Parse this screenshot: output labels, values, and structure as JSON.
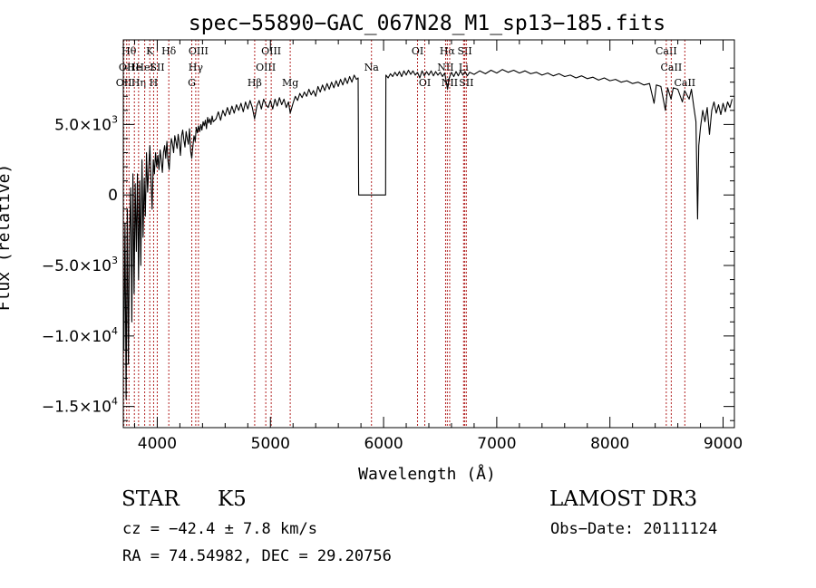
{
  "chart_data": {
    "type": "line",
    "title": "spec−55890−GAC_067N28_M1_sp13−185.fits",
    "xlabel": "Wavelength (Å)",
    "ylabel": "Flux (relative)",
    "xlim": [
      3700,
      9100
    ],
    "ylim": [
      -16500,
      11000
    ],
    "x_ticks": [
      {
        "value": 4000,
        "label": "4000"
      },
      {
        "value": 5000,
        "label": "5000"
      },
      {
        "value": 6000,
        "label": "6000"
      },
      {
        "value": 7000,
        "label": "7000"
      },
      {
        "value": 8000,
        "label": "8000"
      },
      {
        "value": 9000,
        "label": "9000"
      }
    ],
    "y_ticks": [
      {
        "value": 5000,
        "mantissa": "5.0×10",
        "exp": "3"
      },
      {
        "value": 0,
        "mantissa": "0",
        "exp": ""
      },
      {
        "value": -5000,
        "mantissa": "−5.0×10",
        "exp": "3"
      },
      {
        "value": -10000,
        "mantissa": "−1.0×10",
        "exp": "4"
      },
      {
        "value": -15000,
        "mantissa": "−1.5×10",
        "exp": "4"
      }
    ],
    "series": [
      {
        "color": "#000000",
        "points": [
          [
            3705,
            -11000
          ],
          [
            3715,
            -2000
          ],
          [
            3725,
            -14500
          ],
          [
            3735,
            -1000
          ],
          [
            3745,
            -12000
          ],
          [
            3755,
            -3000
          ],
          [
            3765,
            500
          ],
          [
            3775,
            -9000
          ],
          [
            3785,
            1500
          ],
          [
            3795,
            -7000
          ],
          [
            3805,
            800
          ],
          [
            3815,
            -4000
          ],
          [
            3825,
            1500
          ],
          [
            3835,
            -6000
          ],
          [
            3845,
            1000
          ],
          [
            3855,
            -5000
          ],
          [
            3865,
            2500
          ],
          [
            3875,
            -3000
          ],
          [
            3885,
            1200
          ],
          [
            3895,
            -1500
          ],
          [
            3905,
            3000
          ],
          [
            3915,
            200
          ],
          [
            3925,
            2000
          ],
          [
            3935,
            3500
          ],
          [
            3945,
            1000
          ],
          [
            3955,
            -1000
          ],
          [
            3965,
            2500
          ],
          [
            3975,
            1500
          ],
          [
            3985,
            3000
          ],
          [
            3995,
            2000
          ],
          [
            4005,
            2800
          ],
          [
            4015,
            1800
          ],
          [
            4025,
            3200
          ],
          [
            4035,
            2500
          ],
          [
            4045,
            1600
          ],
          [
            4055,
            3000
          ],
          [
            4065,
            3500
          ],
          [
            4075,
            2600
          ],
          [
            4085,
            3800
          ],
          [
            4095,
            2400
          ],
          [
            4105,
            1800
          ],
          [
            4115,
            3200
          ],
          [
            4125,
            4000
          ],
          [
            4135,
            3600
          ],
          [
            4145,
            3000
          ],
          [
            4155,
            4200
          ],
          [
            4165,
            3800
          ],
          [
            4175,
            3300
          ],
          [
            4185,
            4300
          ],
          [
            4195,
            3700
          ],
          [
            4205,
            2800
          ],
          [
            4215,
            4200
          ],
          [
            4225,
            4600
          ],
          [
            4235,
            3900
          ],
          [
            4245,
            3400
          ],
          [
            4255,
            4500
          ],
          [
            4265,
            4000
          ],
          [
            4275,
            3600
          ],
          [
            4285,
            4700
          ],
          [
            4295,
            3100
          ],
          [
            4305,
            2600
          ],
          [
            4315,
            3500
          ],
          [
            4325,
            4200
          ],
          [
            4335,
            3800
          ],
          [
            4345,
            4800
          ],
          [
            4355,
            4400
          ],
          [
            4365,
            4900
          ],
          [
            4375,
            4500
          ],
          [
            4385,
            5000
          ],
          [
            4395,
            4600
          ],
          [
            4405,
            5200
          ],
          [
            4415,
            4900
          ],
          [
            4425,
            5300
          ],
          [
            4435,
            4700
          ],
          [
            4445,
            5500
          ],
          [
            4455,
            5100
          ],
          [
            4465,
            5400
          ],
          [
            4475,
            5000
          ],
          [
            4485,
            5600
          ],
          [
            4495,
            5200
          ],
          [
            4520,
            5400
          ],
          [
            4540,
            5900
          ],
          [
            4560,
            5300
          ],
          [
            4580,
            6000
          ],
          [
            4600,
            5600
          ],
          [
            4620,
            6200
          ],
          [
            4640,
            5700
          ],
          [
            4660,
            6300
          ],
          [
            4680,
            5800
          ],
          [
            4700,
            6400
          ],
          [
            4720,
            6000
          ],
          [
            4740,
            6500
          ],
          [
            4760,
            5900
          ],
          [
            4780,
            6600
          ],
          [
            4800,
            6100
          ],
          [
            4820,
            6700
          ],
          [
            4840,
            6200
          ],
          [
            4860,
            5400
          ],
          [
            4880,
            6300
          ],
          [
            4900,
            6700
          ],
          [
            4920,
            6100
          ],
          [
            4940,
            6800
          ],
          [
            4960,
            6400
          ],
          [
            4980,
            6200
          ],
          [
            5000,
            6700
          ],
          [
            5020,
            6100
          ],
          [
            5040,
            6800
          ],
          [
            5060,
            6300
          ],
          [
            5080,
            6900
          ],
          [
            5100,
            6400
          ],
          [
            5120,
            6800
          ],
          [
            5140,
            6200
          ],
          [
            5160,
            6600
          ],
          [
            5175,
            5800
          ],
          [
            5185,
            6100
          ],
          [
            5200,
            6500
          ],
          [
            5220,
            7000
          ],
          [
            5240,
            6700
          ],
          [
            5260,
            7200
          ],
          [
            5280,
            6900
          ],
          [
            5300,
            7300
          ],
          [
            5320,
            7000
          ],
          [
            5340,
            7500
          ],
          [
            5360,
            7100
          ],
          [
            5380,
            7400
          ],
          [
            5400,
            7000
          ],
          [
            5420,
            7700
          ],
          [
            5440,
            7300
          ],
          [
            5460,
            7800
          ],
          [
            5480,
            7400
          ],
          [
            5500,
            7900
          ],
          [
            5520,
            7500
          ],
          [
            5540,
            8000
          ],
          [
            5560,
            7600
          ],
          [
            5580,
            8100
          ],
          [
            5600,
            7700
          ],
          [
            5620,
            8200
          ],
          [
            5640,
            7800
          ],
          [
            5660,
            8300
          ],
          [
            5680,
            7900
          ],
          [
            5700,
            8400
          ],
          [
            5720,
            8000
          ],
          [
            5740,
            8500
          ],
          [
            5760,
            8200
          ],
          [
            5775,
            8300
          ],
          [
            5780,
            0
          ],
          [
            5800,
            0
          ],
          [
            5850,
            0
          ],
          [
            5900,
            0
          ],
          [
            5950,
            0
          ],
          [
            6000,
            0
          ],
          [
            6018,
            0
          ],
          [
            6020,
            8500
          ],
          [
            6040,
            8300
          ],
          [
            6060,
            8600
          ],
          [
            6080,
            8400
          ],
          [
            6100,
            8700
          ],
          [
            6120,
            8450
          ],
          [
            6140,
            8750
          ],
          [
            6160,
            8400
          ],
          [
            6180,
            8800
          ],
          [
            6200,
            8500
          ],
          [
            6220,
            8850
          ],
          [
            6240,
            8550
          ],
          [
            6260,
            8800
          ],
          [
            6280,
            8500
          ],
          [
            6300,
            8700
          ],
          [
            6320,
            8300
          ],
          [
            6340,
            8800
          ],
          [
            6360,
            8450
          ],
          [
            6380,
            8750
          ],
          [
            6400,
            8500
          ],
          [
            6420,
            8800
          ],
          [
            6440,
            8450
          ],
          [
            6460,
            8750
          ],
          [
            6480,
            8500
          ],
          [
            6500,
            8700
          ],
          [
            6520,
            8400
          ],
          [
            6540,
            8650
          ],
          [
            6555,
            8000
          ],
          [
            6565,
            7500
          ],
          [
            6580,
            8300
          ],
          [
            6600,
            8700
          ],
          [
            6620,
            8400
          ],
          [
            6640,
            8750
          ],
          [
            6660,
            8450
          ],
          [
            6680,
            8800
          ],
          [
            6700,
            8500
          ],
          [
            6720,
            8750
          ],
          [
            6740,
            8450
          ],
          [
            6760,
            8700
          ],
          [
            6800,
            8550
          ],
          [
            6850,
            8800
          ],
          [
            6900,
            8600
          ],
          [
            6950,
            8850
          ],
          [
            7000,
            8650
          ],
          [
            7050,
            8900
          ],
          [
            7100,
            8700
          ],
          [
            7150,
            8850
          ],
          [
            7200,
            8650
          ],
          [
            7250,
            8800
          ],
          [
            7300,
            8600
          ],
          [
            7350,
            8700
          ],
          [
            7400,
            8500
          ],
          [
            7450,
            8650
          ],
          [
            7500,
            8450
          ],
          [
            7550,
            8600
          ],
          [
            7600,
            8400
          ],
          [
            7650,
            8500
          ],
          [
            7700,
            8300
          ],
          [
            7750,
            8450
          ],
          [
            7800,
            8250
          ],
          [
            7850,
            8350
          ],
          [
            7900,
            8150
          ],
          [
            7950,
            8300
          ],
          [
            8000,
            8100
          ],
          [
            8050,
            8200
          ],
          [
            8100,
            8000
          ],
          [
            8150,
            8100
          ],
          [
            8200,
            7900
          ],
          [
            8250,
            8000
          ],
          [
            8300,
            7800
          ],
          [
            8350,
            7900
          ],
          [
            8390,
            6500
          ],
          [
            8410,
            7800
          ],
          [
            8450,
            7700
          ],
          [
            8490,
            6000
          ],
          [
            8510,
            7600
          ],
          [
            8540,
            6800
          ],
          [
            8560,
            7600
          ],
          [
            8600,
            7500
          ],
          [
            8640,
            6600
          ],
          [
            8660,
            7400
          ],
          [
            8700,
            6800
          ],
          [
            8720,
            7500
          ],
          [
            8740,
            6300
          ],
          [
            8760,
            5200
          ],
          [
            8775,
            -1700
          ],
          [
            8785,
            3500
          ],
          [
            8800,
            4800
          ],
          [
            8820,
            6000
          ],
          [
            8840,
            5200
          ],
          [
            8860,
            6200
          ],
          [
            8880,
            4300
          ],
          [
            8900,
            6000
          ],
          [
            8920,
            6600
          ],
          [
            8940,
            5800
          ],
          [
            8960,
            6400
          ],
          [
            8980,
            5700
          ],
          [
            9000,
            6500
          ],
          [
            9020,
            5900
          ],
          [
            9040,
            6600
          ],
          [
            9060,
            6200
          ],
          [
            9080,
            6800
          ]
        ]
      }
    ],
    "line_markers": [
      {
        "wavelength": 3705,
        "label": "OII",
        "row": 2
      },
      {
        "wavelength": 3730,
        "label": "OII",
        "row": 1
      },
      {
        "wavelength": 3750,
        "label": "Hθ",
        "row": 0
      },
      {
        "wavelength": 3798,
        "label": "He",
        "row": 1
      },
      {
        "wavelength": 3835,
        "label": "Hη",
        "row": 2
      },
      {
        "wavelength": 3889,
        "label": "HeI",
        "row": 1
      },
      {
        "wavelength": 3934,
        "label": "K",
        "row": 0
      },
      {
        "wavelength": 3968,
        "label": "H",
        "row": 2
      },
      {
        "wavelength": 4000,
        "label": "SII",
        "row": 1
      },
      {
        "wavelength": 4102,
        "label": "Hδ",
        "row": 0
      },
      {
        "wavelength": 4305,
        "label": "G",
        "row": 2
      },
      {
        "wavelength": 4340,
        "label": "Hγ",
        "row": 1
      },
      {
        "wavelength": 4364,
        "label": "OIII",
        "row": 0
      },
      {
        "wavelength": 4861,
        "label": "Hβ",
        "row": 2
      },
      {
        "wavelength": 4959,
        "label": "OIII",
        "row": 1
      },
      {
        "wavelength": 5007,
        "label": "OIII",
        "row": 0
      },
      {
        "wavelength": 5175,
        "label": "Mg",
        "row": 2
      },
      {
        "wavelength": 5893,
        "label": "Na",
        "row": 1
      },
      {
        "wavelength": 6300,
        "label": "OI",
        "row": 0
      },
      {
        "wavelength": 6364,
        "label": "OI",
        "row": 2
      },
      {
        "wavelength": 6548,
        "label": "NII",
        "row": 1
      },
      {
        "wavelength": 6563,
        "label": "Hα",
        "row": 0
      },
      {
        "wavelength": 6584,
        "label": "NII",
        "row": 2
      },
      {
        "wavelength": 6707,
        "label": "Li",
        "row": 1
      },
      {
        "wavelength": 6717,
        "label": "SII",
        "row": 0
      },
      {
        "wavelength": 6731,
        "label": "SII",
        "row": 2
      },
      {
        "wavelength": 8498,
        "label": "CaII",
        "row": 0
      },
      {
        "wavelength": 8542,
        "label": "CaII",
        "row": 1
      },
      {
        "wavelength": 8662,
        "label": "CaII",
        "row": 2
      }
    ]
  },
  "info": {
    "class_label": "STAR",
    "subclass": "K5",
    "survey": "LAMOST DR3",
    "cz_line": "cz = −42.4 ± 7.8 km/s",
    "obs_date": "Obs−Date: 20111124",
    "radec_line": "RA =  74.54982, DEC =  29.20756"
  }
}
